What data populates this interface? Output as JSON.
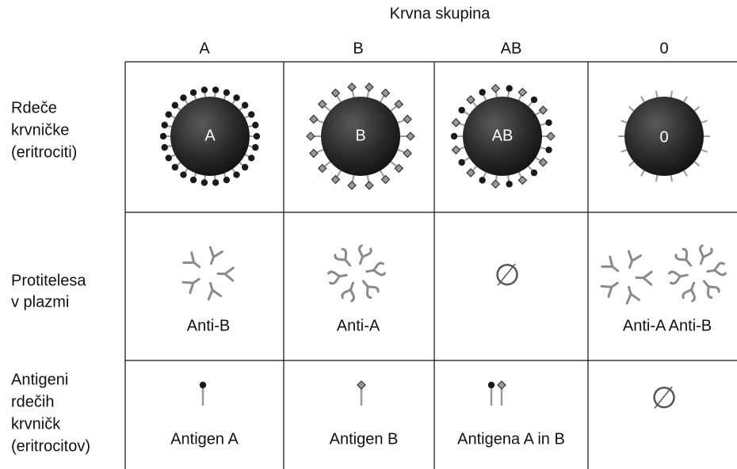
{
  "header": {
    "title": "Krvna skupina",
    "columns": [
      "A",
      "B",
      "AB",
      "0"
    ]
  },
  "rows": [
    {
      "label": [
        "Rdeče",
        "krvničke",
        "(eritrociti)"
      ],
      "cells": [
        "A",
        "B",
        "AB",
        "0"
      ]
    },
    {
      "label": [
        "Protitelesa",
        "v plazmi"
      ],
      "cells": [
        "Anti-B",
        "Anti-A",
        "∅",
        "Anti-A Anti-B"
      ]
    },
    {
      "label": [
        "Antigeni",
        "rdečih",
        "krvničk",
        "(eritrocitov)"
      ],
      "cells": [
        "Antigen A",
        "Antigen B",
        "Antigena A in B",
        "∅"
      ]
    }
  ]
}
